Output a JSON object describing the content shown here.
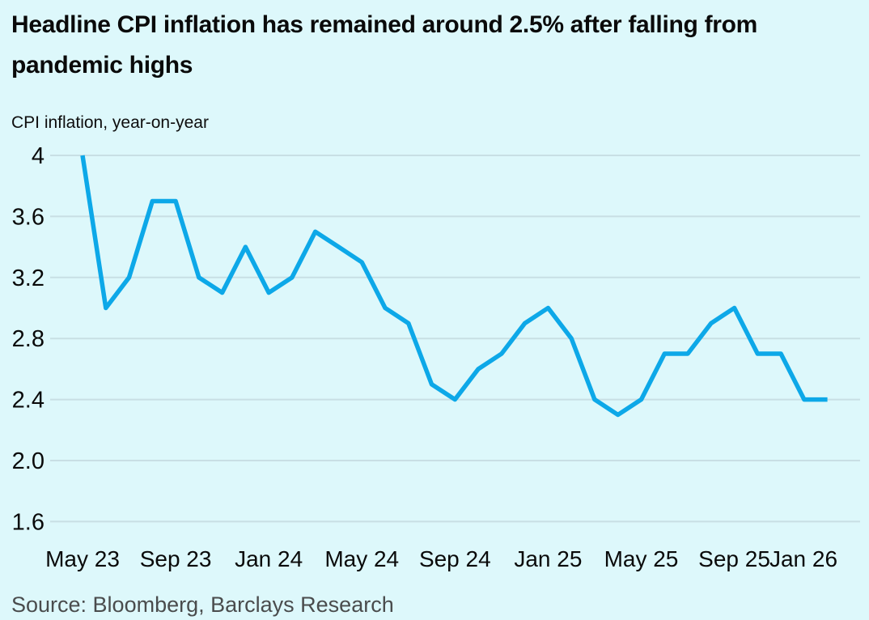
{
  "header": {
    "title": "Headline CPI inflation has remained around 2.5% after falling from pandemic highs",
    "subtitle": "CPI inflation, year-on-year"
  },
  "footer": {
    "source": "Source: Bloomberg, Barclays Research"
  },
  "colors": {
    "background": "#ddf8fb",
    "line": "#0da8e8",
    "grid": "#c8dfe4",
    "text": "#0a0a0a",
    "source_text": "#4a4c4d"
  },
  "chart_data": {
    "type": "line",
    "title": "Headline CPI inflation has remained around 2.5% after falling from pandemic highs",
    "ylabel": "CPI inflation, year-on-year",
    "legend": "none",
    "grid": "horizontal",
    "ylim": [
      1.6,
      4.0
    ],
    "x": [
      "May 23",
      "Jun 23",
      "Jul 23",
      "Aug 23",
      "Sep 23",
      "Oct 23",
      "Nov 23",
      "Dec 23",
      "Jan 24",
      "Feb 24",
      "Mar 24",
      "Apr 24",
      "May 24",
      "Jun 24",
      "Jul 24",
      "Aug 24",
      "Sep 24",
      "Oct 24",
      "Nov 24",
      "Dec 24",
      "Jan 25",
      "Feb 25",
      "Mar 25",
      "Apr 25",
      "May 25",
      "Jun 25",
      "Jul 25",
      "Aug 25",
      "Sep 25",
      "Oct 25",
      "Nov 25",
      "Dec 25",
      "Jan 26"
    ],
    "series": [
      {
        "name": "CPI inflation, year-on-year",
        "values": [
          4.0,
          3.0,
          3.2,
          3.7,
          3.7,
          3.2,
          3.1,
          3.4,
          3.1,
          3.2,
          3.5,
          3.4,
          3.3,
          3.0,
          2.9,
          2.5,
          2.4,
          2.6,
          2.7,
          2.9,
          3.0,
          2.8,
          2.4,
          2.3,
          2.4,
          2.7,
          2.7,
          2.9,
          3.0,
          2.7,
          2.7,
          2.4,
          2.4
        ]
      }
    ],
    "x_tick_indices": [
      0,
      4,
      8,
      12,
      16,
      20,
      24,
      28,
      32
    ],
    "x_tick_labels": [
      "May 23",
      "Sep 23",
      "Jan 24",
      "May 24",
      "Sep 24",
      "Jan 25",
      "May 25",
      "Sep 25",
      "Jan 26"
    ],
    "y_ticks": [
      {
        "value": 4.0,
        "label": "4"
      },
      {
        "value": 3.6,
        "label": "3.6"
      },
      {
        "value": 3.2,
        "label": "3.2"
      },
      {
        "value": 2.8,
        "label": "2.8"
      },
      {
        "value": 2.4,
        "label": "2.4"
      },
      {
        "value": 2.0,
        "label": "2.0"
      },
      {
        "value": 1.6,
        "label": "1.6"
      }
    ]
  }
}
